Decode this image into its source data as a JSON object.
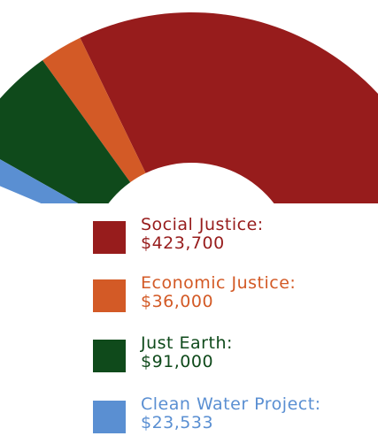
{
  "chart_data": {
    "type": "pie",
    "variant": "semi-donut",
    "series": [
      {
        "name": "Social Justice:",
        "label": "$423,700",
        "value": 423700,
        "color": "#971c1c"
      },
      {
        "name": "Economic Justice:",
        "label": "$36,000",
        "value": 36000,
        "color": "#d35a26"
      },
      {
        "name": "Just Earth:",
        "label": "$91,000",
        "value": 91000,
        "color": "#0f4a1b"
      },
      {
        "name": "Clean Water Project:",
        "label": "$23,533",
        "value": 23533,
        "color": "#5a8fd2"
      }
    ],
    "legend": "bottom"
  }
}
